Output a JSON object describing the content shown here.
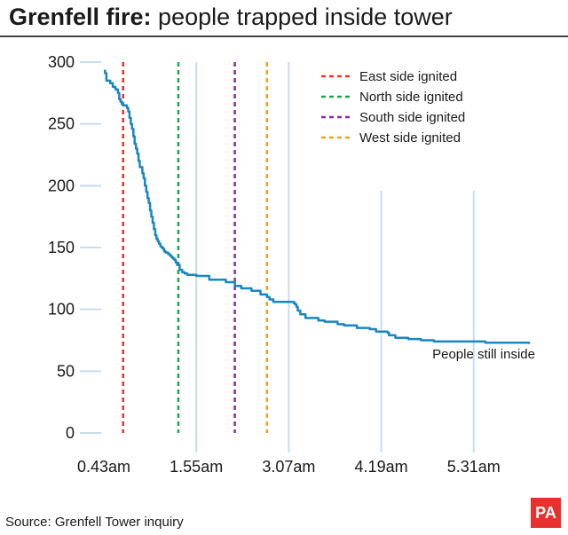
{
  "chart_data": {
    "type": "line",
    "title_bold": "Grenfell fire:",
    "title_rest": " people trapped inside tower",
    "source": "Source: Grenfell Tower inquiry",
    "logo": "PA",
    "y_ticks": [
      0,
      50,
      100,
      150,
      200,
      250,
      300
    ],
    "ylim": [
      0,
      300
    ],
    "x_tick_labels": [
      "0.43am",
      "1.55am",
      "3.07am",
      "4.19am",
      "5.31am"
    ],
    "x_tick_minutes": [
      43,
      115,
      187,
      259,
      331
    ],
    "xlim_minutes": [
      43,
      374
    ],
    "x_grid_minutes": [
      115,
      187,
      259,
      331
    ],
    "events": [
      {
        "label": "East side ignited",
        "minute": 58,
        "color": "#e8312f"
      },
      {
        "label": "North side ignited",
        "minute": 101,
        "color": "#1fa64a"
      },
      {
        "label": "South side ignited",
        "minute": 145,
        "color": "#8e2b9e"
      },
      {
        "label": "West side ignited",
        "minute": 170,
        "color": "#f0a21c"
      }
    ],
    "series": [
      {
        "name": "People still inside",
        "color": "#1a86bf",
        "x": [
          43,
          44,
          45,
          48,
          50,
          52,
          54,
          55,
          56,
          57,
          58,
          61,
          62,
          63,
          64,
          65,
          66,
          67,
          68,
          69,
          70,
          71,
          73,
          74,
          75,
          76,
          77,
          78,
          79,
          80,
          81,
          82,
          83,
          84,
          85,
          86,
          87,
          88,
          89,
          90,
          91,
          93,
          94,
          95,
          96,
          97,
          98,
          99,
          100,
          102,
          104,
          106,
          108,
          115,
          125,
          138,
          145,
          150,
          158,
          165,
          170,
          172,
          175,
          180,
          187,
          191,
          192,
          193,
          194,
          196,
          200,
          210,
          215,
          225,
          230,
          240,
          250,
          255,
          260,
          264,
          265,
          270,
          280,
          290,
          300,
          320,
          340,
          360,
          374
        ],
        "y": [
          293,
          291,
          285,
          283,
          280,
          278,
          275,
          270,
          268,
          266,
          265,
          263,
          260,
          255,
          250,
          246,
          240,
          234,
          230,
          226,
          220,
          215,
          210,
          206,
          200,
          195,
          190,
          186,
          180,
          175,
          170,
          165,
          160,
          157,
          155,
          153,
          151,
          150,
          149,
          147,
          146,
          145,
          144,
          143,
          142,
          141,
          140,
          138,
          136,
          132,
          130,
          129,
          128,
          127,
          124,
          122,
          119,
          117,
          115,
          112,
          110,
          108,
          106,
          106,
          106,
          105,
          104,
          102,
          99,
          96,
          93,
          91,
          90,
          88,
          87,
          85,
          84,
          82,
          82,
          81,
          79,
          77,
          76,
          75,
          74,
          74,
          73,
          73,
          72
        ]
      }
    ],
    "series_annotation": "People still inside"
  }
}
